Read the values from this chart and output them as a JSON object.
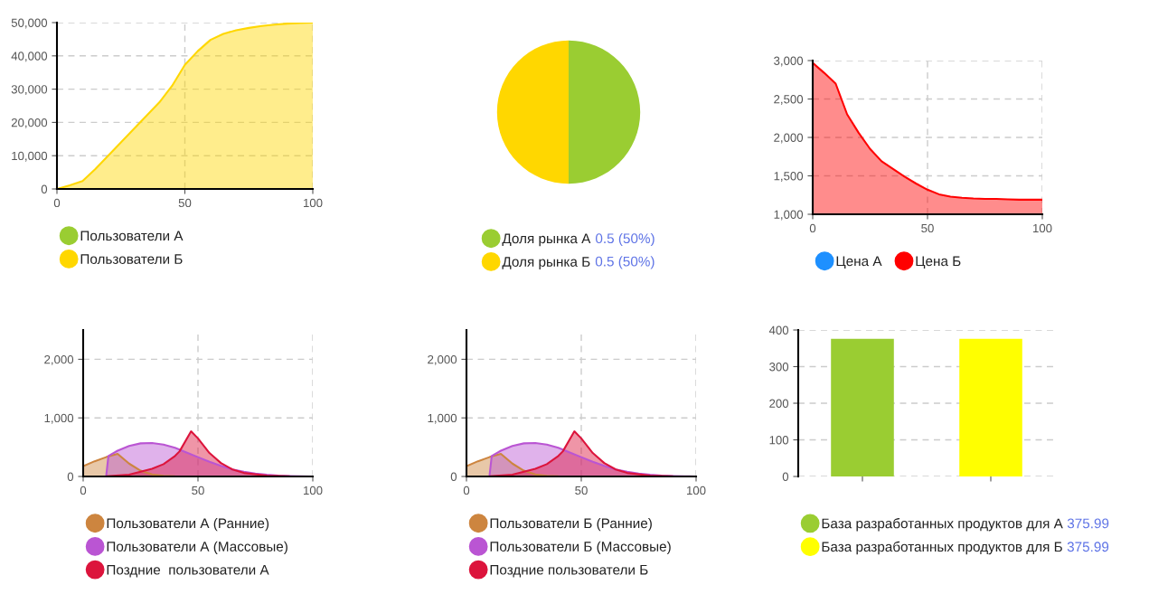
{
  "chart_data": [
    {
      "type": "area",
      "x": [
        0,
        5,
        10,
        15,
        20,
        25,
        30,
        35,
        40,
        45,
        50,
        55,
        60,
        65,
        70,
        75,
        80,
        85,
        90,
        95,
        100
      ],
      "series": [
        {
          "name": "Пользователи А",
          "color": "#9acd32",
          "values": [
            null,
            null,
            null,
            null,
            null,
            null,
            null,
            null,
            null,
            null,
            null,
            null,
            null,
            null,
            null,
            null,
            null,
            null,
            null,
            null,
            null
          ]
        },
        {
          "name": "Пользователи Б",
          "color": "#ffd700",
          "values": [
            0,
            1100,
            2400,
            6000,
            10000,
            14000,
            18000,
            22000,
            26000,
            31000,
            37300,
            41400,
            44800,
            46600,
            47700,
            48400,
            49000,
            49400,
            49700,
            49900,
            50000
          ]
        }
      ],
      "xlim": [
        0,
        100
      ],
      "xticks": [
        0,
        50,
        100
      ],
      "ylim": [
        0,
        50000
      ],
      "yticks": [
        0,
        {
          "value": 10000,
          "label": "10,000"
        },
        {
          "value": 20000,
          "label": "20,000"
        },
        {
          "value": 30000,
          "label": "30,000"
        },
        {
          "value": 40000,
          "label": "40,000"
        },
        {
          "value": 50000,
          "label": "50,000"
        }
      ],
      "grid": true,
      "legend": "bottom"
    },
    {
      "type": "pie",
      "categories": [
        "Доля рынка А",
        "Доля рынка Б"
      ],
      "values": [
        0.5,
        0.5
      ],
      "colors": [
        "#9acd32",
        "#ffd700"
      ],
      "value_labels": [
        "0.5 (50%)",
        "0.5 (50%)"
      ],
      "legend": "bottom"
    },
    {
      "type": "area",
      "x": [
        0,
        5,
        10,
        15,
        20,
        25,
        30,
        35,
        40,
        45,
        50,
        55,
        60,
        65,
        70,
        75,
        80,
        85,
        90,
        95,
        100
      ],
      "series": [
        {
          "name": "Цена А",
          "color": "#1e90ff",
          "values": [
            null,
            null,
            null,
            null,
            null,
            null,
            null,
            null,
            null,
            null,
            null,
            null,
            null,
            null,
            null,
            null,
            null,
            null,
            null,
            null,
            null
          ]
        },
        {
          "name": "Цена Б",
          "color": "#ff0000",
          "values": [
            2970,
            2840,
            2700,
            2300,
            2060,
            1850,
            1690,
            1590,
            1490,
            1400,
            1320,
            1260,
            1230,
            1215,
            1205,
            1200,
            1200,
            1195,
            1190,
            1190,
            1190
          ]
        }
      ],
      "xlim": [
        0,
        100
      ],
      "xticks": [
        0,
        50,
        100
      ],
      "ylim": [
        1000,
        3000
      ],
      "yticks": [
        {
          "value": 1000,
          "label": "1,000"
        },
        {
          "value": 1500,
          "label": "1,500"
        },
        {
          "value": 2000,
          "label": "2,000"
        },
        {
          "value": 2500,
          "label": "2,500"
        },
        {
          "value": 3000,
          "label": "3,000"
        }
      ],
      "grid": true,
      "legend": "bottom"
    },
    {
      "type": "area",
      "series": [
        {
          "name": "Пользователи А (Ранние)",
          "color": "#cd853f",
          "x": [
            0,
            5,
            10,
            15,
            20,
            25,
            30,
            35,
            40,
            45,
            50,
            60,
            70,
            80,
            90,
            100
          ],
          "values": [
            175,
            260,
            330,
            385,
            220,
            100,
            35,
            12,
            3,
            0,
            0,
            0,
            0,
            0,
            0,
            0
          ]
        },
        {
          "name": "Пользователи А (Массовые)",
          "color": "#ba55d3",
          "x": [
            10,
            11,
            15,
            20,
            25,
            30,
            35,
            40,
            45,
            50,
            55,
            60,
            65,
            70,
            75,
            80,
            85,
            90,
            95,
            100
          ],
          "values": [
            0,
            350,
            440,
            520,
            565,
            570,
            545,
            490,
            410,
            330,
            250,
            180,
            120,
            80,
            50,
            30,
            15,
            8,
            3,
            0
          ]
        },
        {
          "name": "Поздние  пользователи А",
          "color": "#dc143c",
          "x": [
            0,
            10,
            20,
            30,
            35,
            40,
            42,
            47,
            50,
            55,
            60,
            65,
            70,
            80,
            90,
            100
          ],
          "values": [
            0,
            5,
            30,
            130,
            210,
            350,
            430,
            770,
            650,
            400,
            230,
            120,
            60,
            15,
            3,
            0
          ]
        }
      ],
      "xlim": [
        0,
        100
      ],
      "xticks": [
        0,
        50,
        100
      ],
      "ylim": [
        0,
        2500
      ],
      "yticks": [
        0,
        {
          "value": 1000,
          "label": "1,000"
        },
        {
          "value": 2000,
          "label": "2,000"
        }
      ],
      "grid": true,
      "legend": "bottom"
    },
    {
      "type": "area",
      "series": [
        {
          "name": "Пользователи Б (Ранние)",
          "color": "#cd853f",
          "x": [
            0,
            5,
            10,
            15,
            20,
            25,
            30,
            35,
            40,
            45,
            50,
            60,
            70,
            80,
            90,
            100
          ],
          "values": [
            175,
            260,
            330,
            385,
            220,
            100,
            35,
            12,
            3,
            0,
            0,
            0,
            0,
            0,
            0,
            0
          ]
        },
        {
          "name": "Пользователи Б (Массовые)",
          "color": "#ba55d3",
          "x": [
            10,
            11,
            15,
            20,
            25,
            30,
            35,
            40,
            45,
            50,
            55,
            60,
            65,
            70,
            75,
            80,
            85,
            90,
            95,
            100
          ],
          "values": [
            0,
            350,
            440,
            520,
            565,
            570,
            545,
            490,
            410,
            330,
            250,
            180,
            120,
            80,
            50,
            30,
            15,
            8,
            3,
            0
          ]
        },
        {
          "name": "Поздние пользователи Б",
          "color": "#dc143c",
          "x": [
            0,
            10,
            20,
            30,
            35,
            40,
            42,
            47,
            50,
            55,
            60,
            65,
            70,
            80,
            90,
            100
          ],
          "values": [
            0,
            5,
            30,
            130,
            210,
            350,
            430,
            770,
            650,
            400,
            230,
            120,
            60,
            15,
            3,
            0
          ]
        }
      ],
      "xlim": [
        0,
        100
      ],
      "xticks": [
        0,
        50,
        100
      ],
      "ylim": [
        0,
        2500
      ],
      "yticks": [
        0,
        {
          "value": 1000,
          "label": "1,000"
        },
        {
          "value": 2000,
          "label": "2,000"
        }
      ],
      "grid": true,
      "legend": "bottom"
    },
    {
      "type": "bar",
      "categories": [
        null,
        null
      ],
      "series": [
        {
          "name": "База разработанных продуктов для А",
          "color": "#9acd32",
          "values": [
            375.99,
            null
          ]
        },
        {
          "name": "База разработанных продуктов для Б",
          "color": "#ffff00",
          "values": [
            null,
            375.99
          ]
        }
      ],
      "annotations": [
        "375.99",
        "375.99"
      ],
      "ylim": [
        0,
        400
      ],
      "yticks": [
        0,
        100,
        200,
        300,
        400
      ],
      "grid": "y",
      "legend": "bottom"
    }
  ]
}
